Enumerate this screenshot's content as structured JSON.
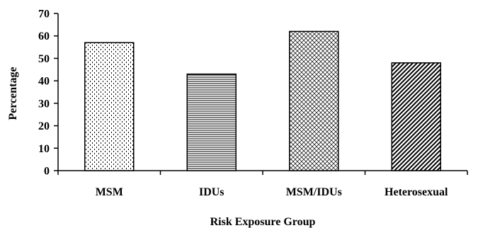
{
  "chart_data": {
    "type": "bar",
    "title": "",
    "xlabel": "Risk Exposure Group",
    "ylabel": "Percentage",
    "categories": [
      "MSM",
      "IDUs",
      "MSM/IDUs",
      "Heterosexual"
    ],
    "values": [
      57,
      43,
      62,
      48
    ],
    "ylim": [
      0,
      70
    ],
    "yticks": [
      0,
      10,
      20,
      30,
      40,
      50,
      60,
      70
    ],
    "grid": false,
    "legend": "none",
    "bar_patterns": [
      "dotted",
      "horizontal-lines",
      "crosshatch",
      "diagonal-lines"
    ],
    "colors": {
      "stroke": "#000000",
      "fill": "#ffffff"
    }
  }
}
